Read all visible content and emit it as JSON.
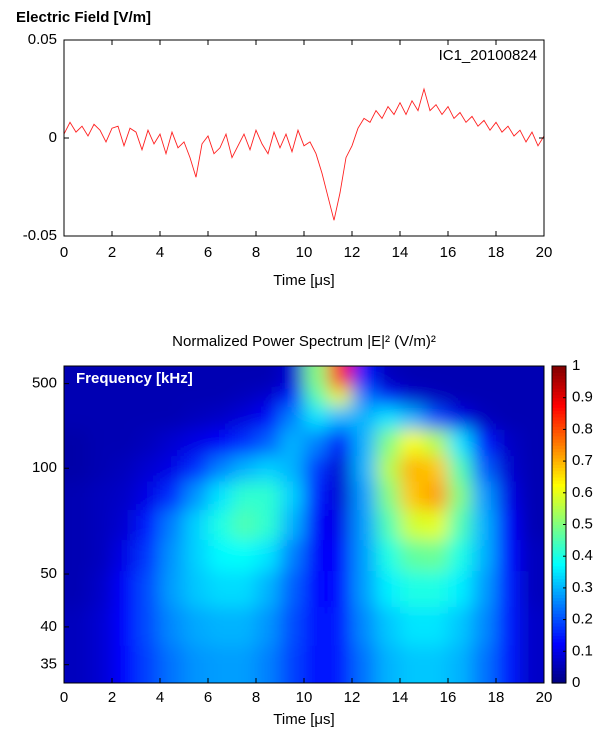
{
  "chart_data": [
    {
      "type": "line",
      "title": "Electric Field [V/m]",
      "annotation": "IC1_20100824",
      "xlabel": "Time [μs]",
      "color": "#ff2020",
      "xlim": [
        0,
        20
      ],
      "xticks": [
        0,
        2,
        4,
        6,
        8,
        10,
        12,
        14,
        16,
        18,
        20
      ],
      "ylim": [
        -0.05,
        0.05
      ],
      "yticks": [
        -0.05,
        0,
        0.05
      ],
      "x": [
        0,
        0.25,
        0.5,
        0.75,
        1,
        1.25,
        1.5,
        1.75,
        2,
        2.25,
        2.5,
        2.75,
        3,
        3.25,
        3.5,
        3.75,
        4,
        4.25,
        4.5,
        4.75,
        5,
        5.25,
        5.5,
        5.75,
        6,
        6.25,
        6.5,
        6.75,
        7,
        7.25,
        7.5,
        7.75,
        8,
        8.25,
        8.5,
        8.75,
        9,
        9.25,
        9.5,
        9.75,
        10,
        10.25,
        10.5,
        10.75,
        11,
        11.25,
        11.5,
        11.75,
        12,
        12.25,
        12.5,
        12.75,
        13,
        13.25,
        13.5,
        13.75,
        14,
        14.25,
        14.5,
        14.75,
        15,
        15.25,
        15.5,
        15.75,
        16,
        16.25,
        16.5,
        16.75,
        17,
        17.25,
        17.5,
        17.75,
        18,
        18.25,
        18.5,
        18.75,
        19,
        19.25,
        19.5,
        19.75,
        20
      ],
      "values": [
        0.002,
        0.008,
        0.003,
        0.006,
        0.001,
        0.007,
        0.004,
        -0.002,
        0.005,
        0.006,
        -0.004,
        0.005,
        0.003,
        -0.006,
        0.004,
        -0.003,
        0.002,
        -0.008,
        0.003,
        -0.005,
        -0.002,
        -0.01,
        -0.02,
        -0.003,
        0.001,
        -0.008,
        -0.005,
        0.002,
        -0.01,
        -0.004,
        0.002,
        -0.006,
        0.004,
        -0.003,
        -0.008,
        0.003,
        -0.005,
        0.002,
        -0.007,
        0.004,
        -0.004,
        -0.002,
        -0.008,
        -0.018,
        -0.03,
        -0.042,
        -0.028,
        -0.01,
        -0.004,
        0.005,
        0.01,
        0.008,
        0.014,
        0.01,
        0.016,
        0.012,
        0.018,
        0.012,
        0.019,
        0.014,
        0.025,
        0.014,
        0.017,
        0.012,
        0.016,
        0.01,
        0.013,
        0.008,
        0.011,
        0.006,
        0.009,
        0.004,
        0.008,
        0.003,
        0.006,
        0.001,
        0.004,
        -0.002,
        0.003,
        -0.004,
        0.001
      ]
    },
    {
      "type": "heatmap",
      "title": "Normalized Power Spectrum |E|² (V/m)²",
      "annotation": "Frequency [kHz]",
      "xlabel": "Time [μs]",
      "colormap": "jet",
      "yscale": "reciprocal",
      "xlim": [
        0,
        20
      ],
      "xticks": [
        0,
        2,
        4,
        6,
        8,
        10,
        12,
        14,
        16,
        18,
        20
      ],
      "ylim": [
        33,
        3000
      ],
      "yticks": [
        35,
        40,
        50,
        100,
        500
      ],
      "clim": [
        0,
        1
      ],
      "cticks": [
        0,
        0.1,
        0.2,
        0.3,
        0.4,
        0.5,
        0.6,
        0.7,
        0.8,
        0.9,
        1
      ],
      "x": [
        0.5,
        1.5,
        2.5,
        3.5,
        4.5,
        5.5,
        6.5,
        7.5,
        8.5,
        9.5,
        10.5,
        11.5,
        12.5,
        13.5,
        14.5,
        15.5,
        16.5,
        17.5,
        18.5,
        19.5
      ],
      "y": [
        600,
        300,
        200,
        130,
        100,
        80,
        65,
        55,
        47,
        40,
        35
      ],
      "z": [
        [
          0.05,
          0.05,
          0.05,
          0.05,
          0.05,
          0.05,
          0.05,
          0.05,
          0.05,
          0.08,
          0.5,
          0.85,
          0.15,
          0.06,
          0.05,
          0.05,
          0.05,
          0.05,
          0.05,
          0.05
        ],
        [
          0.05,
          0.05,
          0.05,
          0.05,
          0.05,
          0.05,
          0.05,
          0.06,
          0.08,
          0.15,
          0.45,
          0.6,
          0.25,
          0.15,
          0.08,
          0.06,
          0.05,
          0.05,
          0.05,
          0.05
        ],
        [
          0.05,
          0.05,
          0.05,
          0.05,
          0.05,
          0.06,
          0.07,
          0.09,
          0.12,
          0.25,
          0.35,
          0.3,
          0.3,
          0.35,
          0.3,
          0.2,
          0.1,
          0.06,
          0.05,
          0.05
        ],
        [
          0.04,
          0.05,
          0.05,
          0.06,
          0.08,
          0.1,
          0.12,
          0.17,
          0.22,
          0.3,
          0.25,
          0.12,
          0.3,
          0.5,
          0.62,
          0.55,
          0.35,
          0.15,
          0.07,
          0.05
        ],
        [
          0.04,
          0.05,
          0.06,
          0.08,
          0.1,
          0.17,
          0.25,
          0.3,
          0.33,
          0.3,
          0.18,
          0.08,
          0.3,
          0.55,
          0.7,
          0.68,
          0.45,
          0.22,
          0.08,
          0.05
        ],
        [
          0.05,
          0.06,
          0.07,
          0.1,
          0.17,
          0.27,
          0.35,
          0.42,
          0.42,
          0.33,
          0.15,
          0.08,
          0.28,
          0.5,
          0.68,
          0.72,
          0.5,
          0.28,
          0.1,
          0.05
        ],
        [
          0.05,
          0.06,
          0.08,
          0.15,
          0.25,
          0.33,
          0.4,
          0.45,
          0.42,
          0.3,
          0.12,
          0.1,
          0.28,
          0.45,
          0.58,
          0.6,
          0.45,
          0.3,
          0.12,
          0.05
        ],
        [
          0.05,
          0.06,
          0.1,
          0.18,
          0.27,
          0.33,
          0.37,
          0.38,
          0.35,
          0.25,
          0.12,
          0.12,
          0.28,
          0.4,
          0.47,
          0.48,
          0.4,
          0.3,
          0.14,
          0.06
        ],
        [
          0.05,
          0.07,
          0.12,
          0.2,
          0.28,
          0.32,
          0.34,
          0.34,
          0.3,
          0.22,
          0.13,
          0.14,
          0.28,
          0.36,
          0.4,
          0.4,
          0.36,
          0.28,
          0.15,
          0.06
        ],
        [
          0.06,
          0.08,
          0.13,
          0.2,
          0.26,
          0.29,
          0.3,
          0.3,
          0.27,
          0.2,
          0.14,
          0.15,
          0.26,
          0.32,
          0.35,
          0.35,
          0.32,
          0.26,
          0.15,
          0.07
        ],
        [
          0.06,
          0.08,
          0.13,
          0.19,
          0.24,
          0.27,
          0.28,
          0.28,
          0.25,
          0.19,
          0.14,
          0.15,
          0.24,
          0.3,
          0.32,
          0.32,
          0.3,
          0.24,
          0.15,
          0.07
        ]
      ]
    }
  ]
}
